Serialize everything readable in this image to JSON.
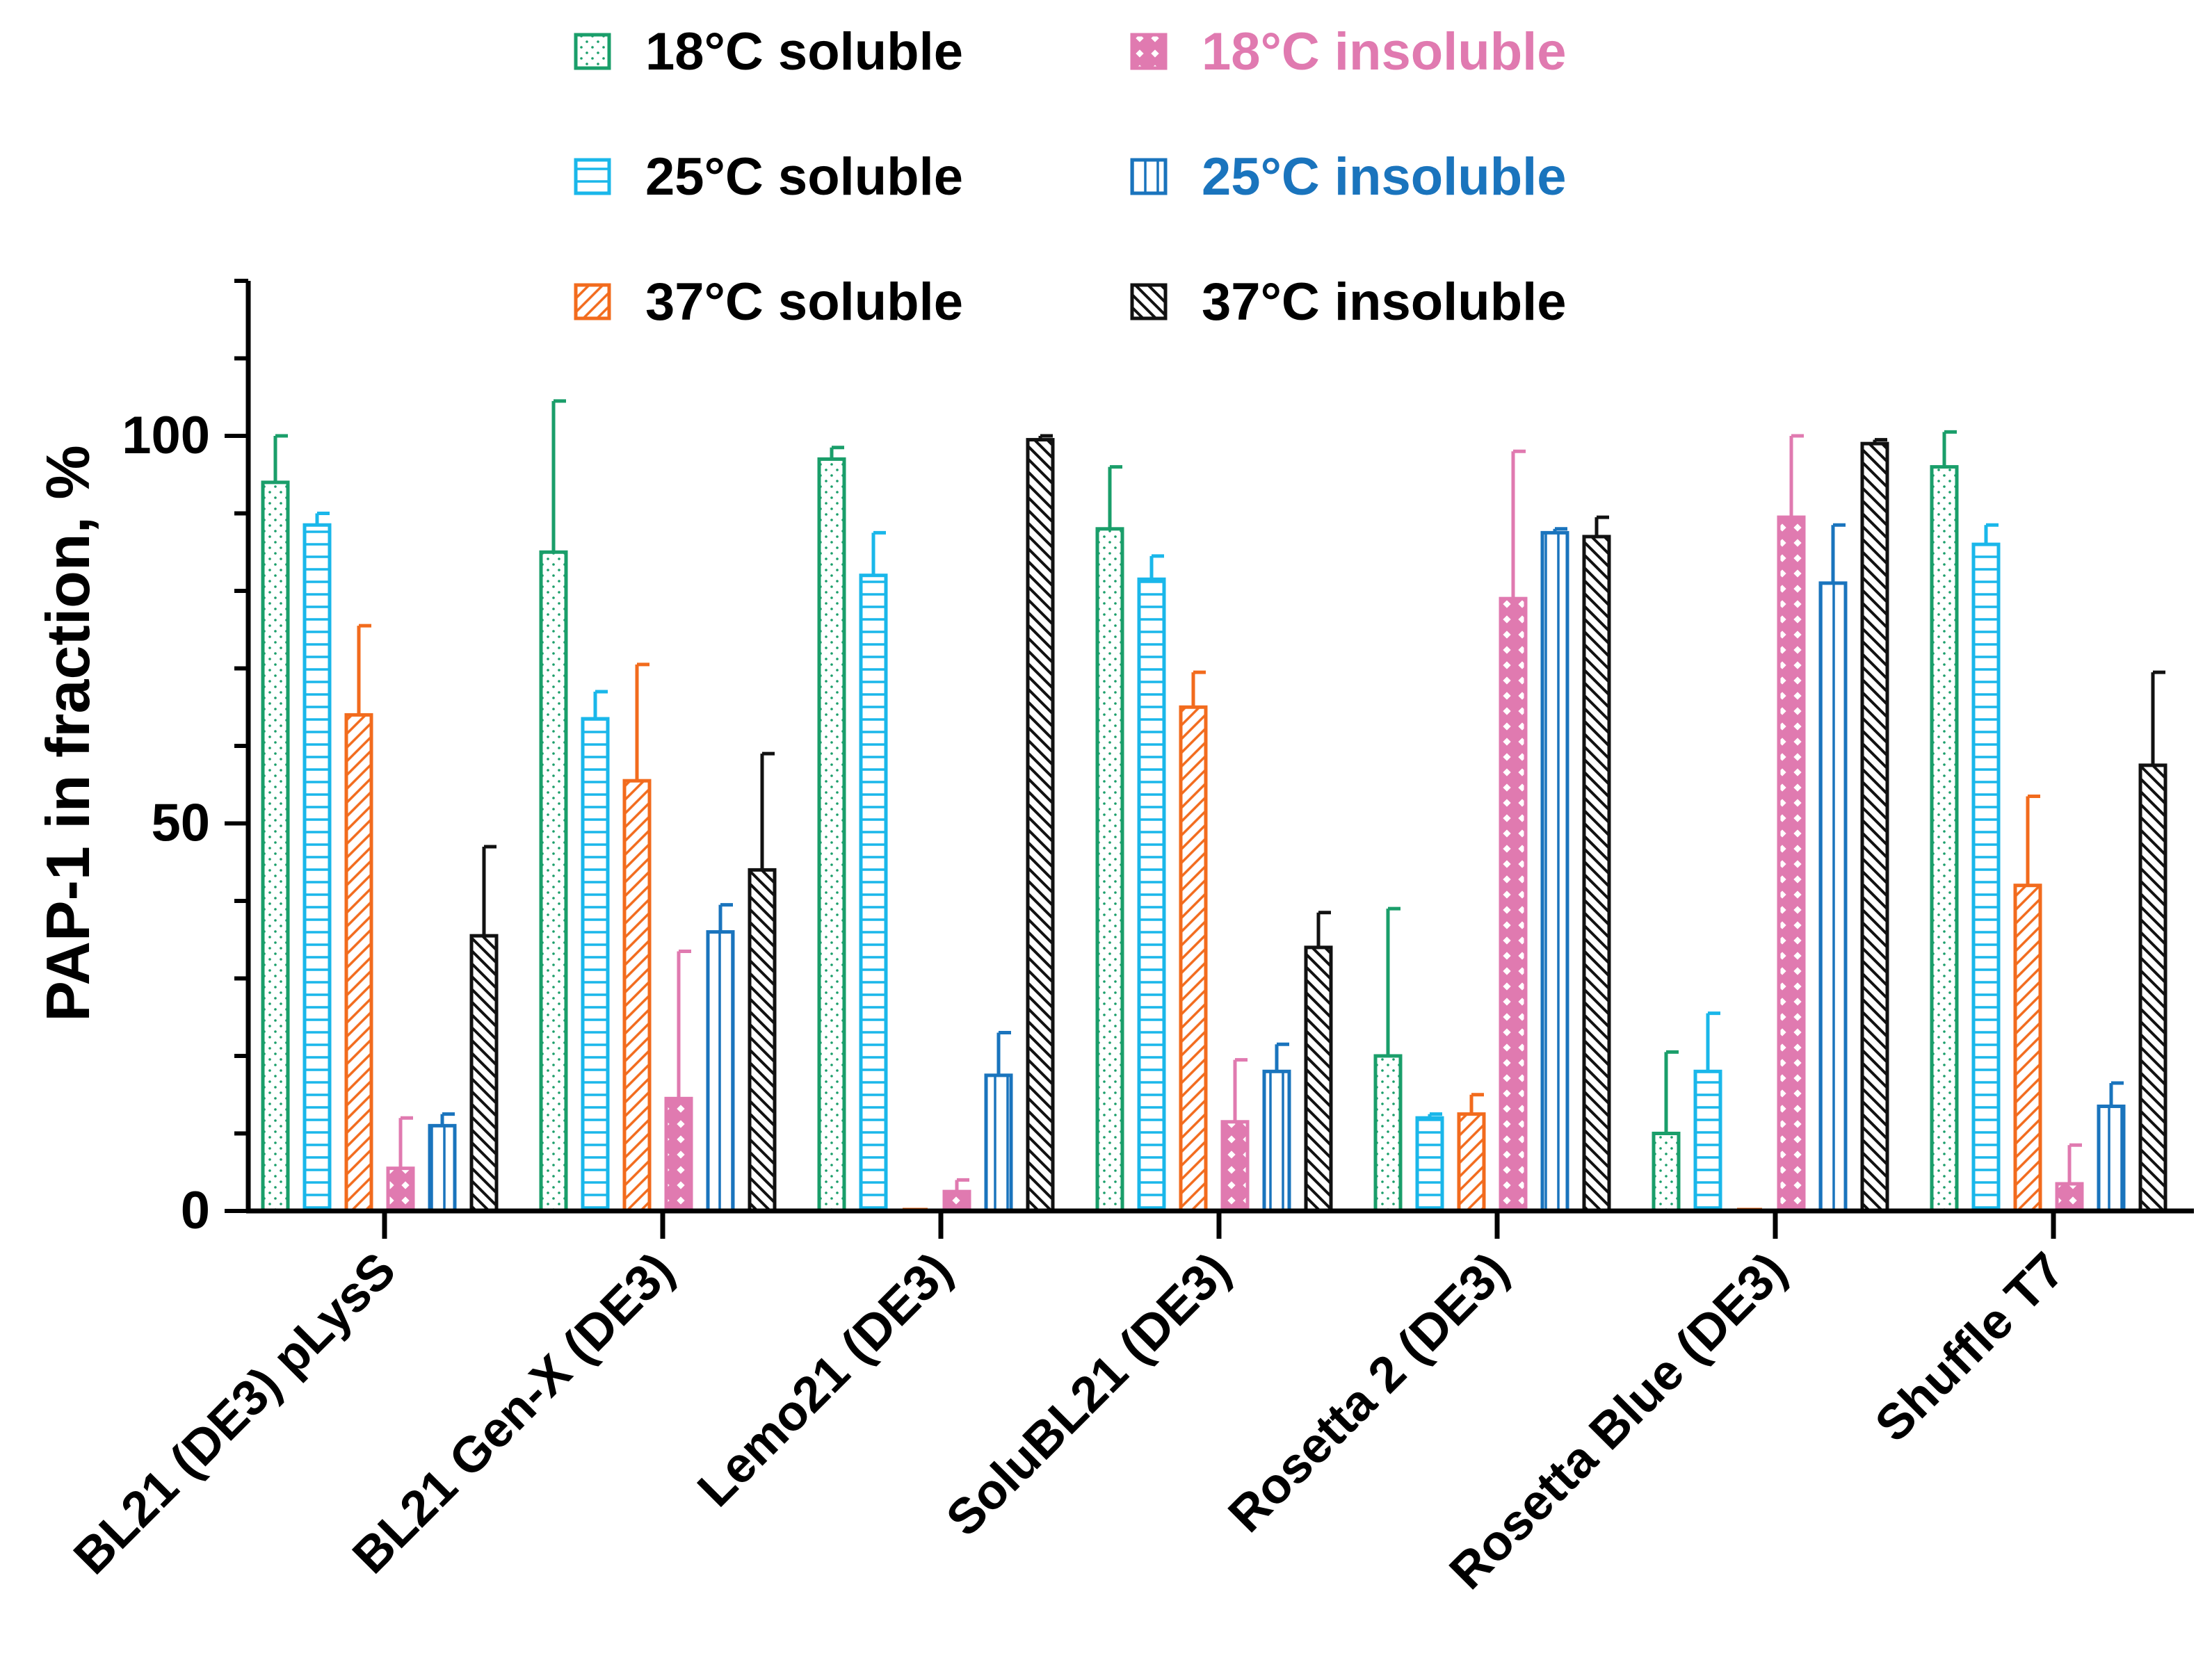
{
  "chart_data": {
    "type": "bar",
    "title": "",
    "xlabel": "",
    "ylabel": "PAP-1 in fraction, %",
    "ylim": [
      0,
      120
    ],
    "yticks": [
      0,
      50,
      100
    ],
    "grid": false,
    "legend_position": "top",
    "categories": [
      "BL21 (DE3) pLysS",
      "BL21 Gen-X (DE3)",
      "Lemo21 (DE3)",
      "SoluBL21 (DE3)",
      "Rosetta 2 (DE3)",
      "Rosetta Blue (DE3)",
      "Shuffle T7"
    ],
    "series": [
      {
        "name": "18°C soluble",
        "color": "#1a9e6a",
        "label_color": "#000000",
        "pattern": "dots",
        "values": [
          94,
          85,
          97,
          88,
          20,
          10,
          96
        ],
        "errors": [
          6,
          19.5,
          1.5,
          8,
          19,
          10.5,
          4.5
        ]
      },
      {
        "name": "25°C soluble",
        "color": "#1ab7ea",
        "label_color": "#000000",
        "pattern": "horizontal",
        "values": [
          88.5,
          63.5,
          82,
          81.5,
          12,
          18,
          86
        ],
        "errors": [
          1.5,
          3.5,
          5.5,
          3,
          0.5,
          7.5,
          2.5
        ]
      },
      {
        "name": "37°C soluble",
        "color": "#f26b1d",
        "label_color": "#000000",
        "pattern": "diagonal",
        "values": [
          64,
          55.5,
          0,
          65,
          12.5,
          0,
          42
        ],
        "errors": [
          11.5,
          15,
          0,
          4.5,
          2.5,
          0,
          11.5
        ]
      },
      {
        "name": "18°C insoluble",
        "color": "#e07ab0",
        "label_color": "#e07ab0",
        "pattern": "crosshatch",
        "values": [
          5.5,
          14.5,
          2.5,
          11.5,
          79,
          89.5,
          3.5
        ],
        "errors": [
          6.5,
          19,
          1.5,
          8,
          19,
          10.5,
          5
        ]
      },
      {
        "name": "25°C insoluble",
        "color": "#1a74bd",
        "label_color": "#1a74bd",
        "pattern": "vertical",
        "values": [
          11,
          36,
          17.5,
          18,
          87.5,
          81,
          13.5
        ],
        "errors": [
          1.5,
          3.5,
          5.5,
          3.5,
          0.5,
          7.5,
          3
        ]
      },
      {
        "name": "37°C insoluble",
        "color": "#111111",
        "label_color": "#000000",
        "pattern": "backdiagonal",
        "values": [
          35.5,
          44,
          99.5,
          34,
          87,
          99,
          57.5
        ],
        "errors": [
          11.5,
          15,
          0.5,
          4.5,
          2.5,
          0.5,
          12
        ]
      }
    ]
  }
}
